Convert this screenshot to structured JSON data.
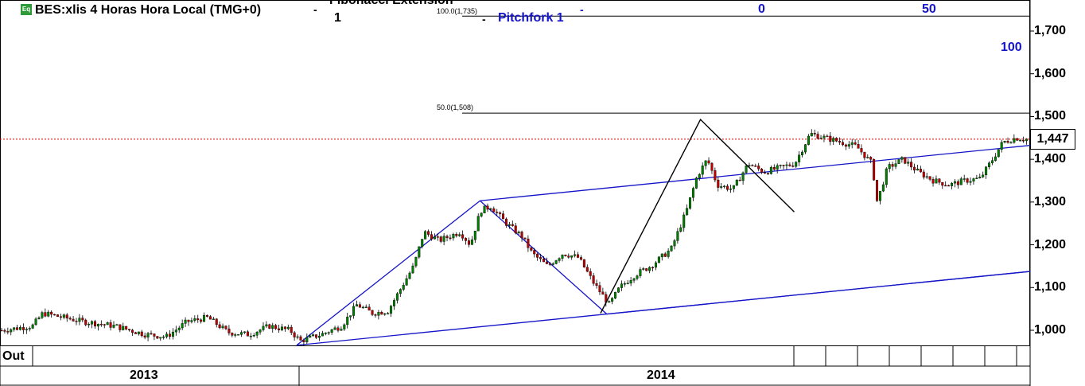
{
  "header": {
    "title": "BES:xlis 4 Horas Hora Local (TMG+0)",
    "dash": "-",
    "fib_label": "Fibonacci Extension",
    "fib_number": "1",
    "pitchfork_label": "Pitchfork 1"
  },
  "colors": {
    "up": "#008000",
    "down": "#c00000",
    "pitchfork": "#1414c8",
    "last_price_line": "#e00000",
    "icon": "#2e9a3a"
  },
  "icon": {
    "name": "eq-icon",
    "text": "Eq"
  },
  "chart_data": {
    "type": "candlestick",
    "y_ticks": [
      "1,000",
      "1,100",
      "1,200",
      "1,300",
      "1,400",
      "1,500",
      "1,600",
      "1,700"
    ],
    "ylim": [
      950,
      1760
    ],
    "last_price": "1,447",
    "x_labels": {
      "month": "Out",
      "years": [
        "2013",
        "2014"
      ]
    },
    "fib_levels": [
      {
        "label": "100.0(1,735)",
        "value": 1735
      },
      {
        "label": "50.0(1,508)",
        "value": 1508
      }
    ],
    "pitchfork_levels": [
      "0",
      "50",
      "100"
    ],
    "pitchfork_points": [
      {
        "t": 0.466,
        "value": 1303
      },
      {
        "t": 0.288,
        "value": 965
      },
      {
        "t": 0.589,
        "value": 1038
      }
    ],
    "price_anchors": [
      [
        0.0,
        1000
      ],
      [
        0.03,
        1010
      ],
      [
        0.04,
        1040
      ],
      [
        0.06,
        1030
      ],
      [
        0.08,
        1020
      ],
      [
        0.11,
        1010
      ],
      [
        0.14,
        990
      ],
      [
        0.16,
        985
      ],
      [
        0.18,
        1020
      ],
      [
        0.2,
        1030
      ],
      [
        0.22,
        995
      ],
      [
        0.24,
        990
      ],
      [
        0.26,
        1010
      ],
      [
        0.28,
        1000
      ],
      [
        0.29,
        975
      ],
      [
        0.31,
        990
      ],
      [
        0.33,
        1010
      ],
      [
        0.345,
        1060
      ],
      [
        0.36,
        1040
      ],
      [
        0.375,
        1045
      ],
      [
        0.388,
        1100
      ],
      [
        0.4,
        1150
      ],
      [
        0.41,
        1230
      ],
      [
        0.425,
        1210
      ],
      [
        0.445,
        1230
      ],
      [
        0.455,
        1200
      ],
      [
        0.465,
        1280
      ],
      [
        0.475,
        1290
      ],
      [
        0.49,
        1250
      ],
      [
        0.505,
        1220
      ],
      [
        0.515,
        1180
      ],
      [
        0.53,
        1150
      ],
      [
        0.545,
        1180
      ],
      [
        0.56,
        1170
      ],
      [
        0.575,
        1110
      ],
      [
        0.59,
        1060
      ],
      [
        0.6,
        1100
      ],
      [
        0.615,
        1130
      ],
      [
        0.63,
        1150
      ],
      [
        0.65,
        1190
      ],
      [
        0.665,
        1280
      ],
      [
        0.675,
        1360
      ],
      [
        0.685,
        1400
      ],
      [
        0.695,
        1340
      ],
      [
        0.71,
        1330
      ],
      [
        0.725,
        1390
      ],
      [
        0.74,
        1370
      ],
      [
        0.755,
        1380
      ],
      [
        0.77,
        1390
      ],
      [
        0.785,
        1460
      ],
      [
        0.8,
        1450
      ],
      [
        0.815,
        1440
      ],
      [
        0.83,
        1430
      ],
      [
        0.845,
        1390
      ],
      [
        0.85,
        1300
      ],
      [
        0.86,
        1380
      ],
      [
        0.875,
        1400
      ],
      [
        0.89,
        1370
      ],
      [
        0.905,
        1350
      ],
      [
        0.92,
        1340
      ],
      [
        0.935,
        1350
      ],
      [
        0.95,
        1355
      ],
      [
        0.962,
        1400
      ],
      [
        0.972,
        1440
      ],
      [
        0.985,
        1450
      ],
      [
        0.995,
        1447
      ]
    ],
    "fib_zigzag": [
      {
        "t": 0.583,
        "value": 1040
      },
      {
        "t": 0.68,
        "value": 1493
      },
      {
        "t": 0.771,
        "value": 1277
      }
    ]
  }
}
